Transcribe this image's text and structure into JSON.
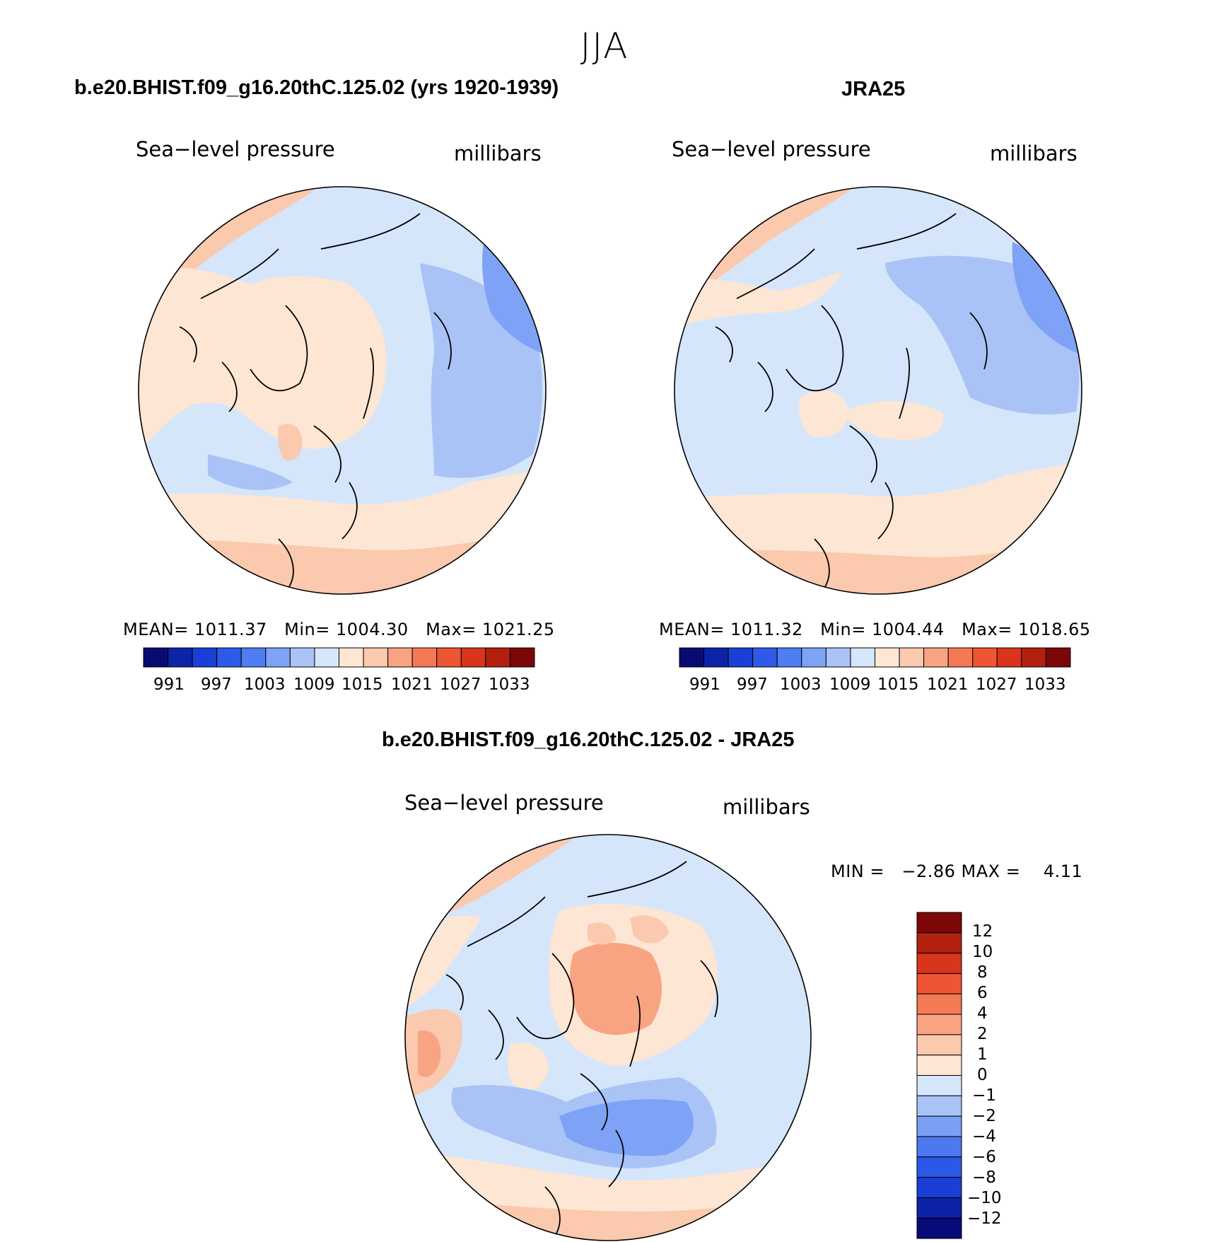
{
  "season": "JJA",
  "colors": {
    "abs_scale": [
      "#0a0a73",
      "#0c24a8",
      "#1a3fd6",
      "#2d5be8",
      "#4f7ef2",
      "#7ea2f5",
      "#a9c3f7",
      "#d5e6fb",
      "#fde6d4",
      "#fbc9ad",
      "#f8a483",
      "#f47a55",
      "#ee5533",
      "#d8351c",
      "#b2210f",
      "#7d0707"
    ],
    "diff_scale": [
      "#090a7a",
      "#0c22a8",
      "#1a3fd6",
      "#2b58e8",
      "#4c78f0",
      "#7aa0f5",
      "#a9c3f7",
      "#d5e6fb",
      "#fde6d4",
      "#fbc9ad",
      "#f8a483",
      "#f47a55",
      "#ee5533",
      "#d8351c",
      "#b2210f",
      "#7d0707"
    ]
  },
  "panels": [
    {
      "title": "b.e20.BHIST.f09_g16.20thC.125.02 (yrs 1920-1939)",
      "variable": "Sea−level pressure",
      "units": "millibars",
      "stats": "MEAN= 1011.37   Min= 1004.30   Max= 1021.25",
      "ticks": [
        "991",
        "997",
        "1003",
        "1009",
        "1015",
        "1021",
        "1027",
        "1033"
      ]
    },
    {
      "title": "JRA25",
      "variable": "Sea−level pressure",
      "units": "millibars",
      "stats": "MEAN= 1011.32   Min= 1004.44   Max= 1018.65",
      "ticks": [
        "991",
        "997",
        "1003",
        "1009",
        "1015",
        "1021",
        "1027",
        "1033"
      ]
    },
    {
      "title": "b.e20.BHIST.f09_g16.20thC.125.02 - JRA25",
      "variable": "Sea−level pressure",
      "units": "millibars",
      "stats": "MIN =   −2.86 MAX =    4.11",
      "ticks": [
        "12",
        "10",
        "8",
        "6",
        "4",
        "2",
        "1",
        "0",
        "−1",
        "−2",
        "−4",
        "−6",
        "−8",
        "−10",
        "−12"
      ]
    }
  ]
}
